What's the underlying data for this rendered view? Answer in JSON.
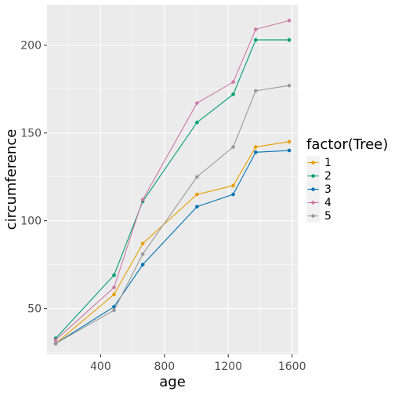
{
  "chart_data": {
    "type": "line",
    "xlabel": "age",
    "ylabel": "circumference",
    "x": [
      118,
      484,
      664,
      1004,
      1231,
      1372,
      1582
    ],
    "xlim": [
      64,
      1636
    ],
    "ylim": [
      23.95,
      223.05
    ],
    "x_ticks": [
      400,
      800,
      1200,
      1600
    ],
    "x_tick_labels": [
      "400",
      "800",
      "1200",
      "1600"
    ],
    "y_ticks": [
      50,
      100,
      150,
      200
    ],
    "y_tick_labels": [
      "50",
      "100",
      "150",
      "200"
    ],
    "grid": true,
    "legend": {
      "title": "factor(Tree)",
      "placement": "right"
    },
    "series": [
      {
        "name": "1",
        "color": "#E69F00",
        "values": [
          30,
          58,
          87,
          115,
          120,
          142,
          145
        ]
      },
      {
        "name": "2",
        "color": "#009E73",
        "values": [
          33,
          69,
          111,
          156,
          172,
          203,
          203
        ]
      },
      {
        "name": "3",
        "color": "#0072B2",
        "values": [
          30,
          51,
          75,
          108,
          115,
          139,
          140
        ]
      },
      {
        "name": "4",
        "color": "#CC79A7",
        "values": [
          32,
          62,
          112,
          167,
          179,
          209,
          214
        ]
      },
      {
        "name": "5",
        "color": "#999999",
        "values": [
          30,
          49,
          81,
          125,
          142,
          174,
          177
        ]
      }
    ]
  }
}
